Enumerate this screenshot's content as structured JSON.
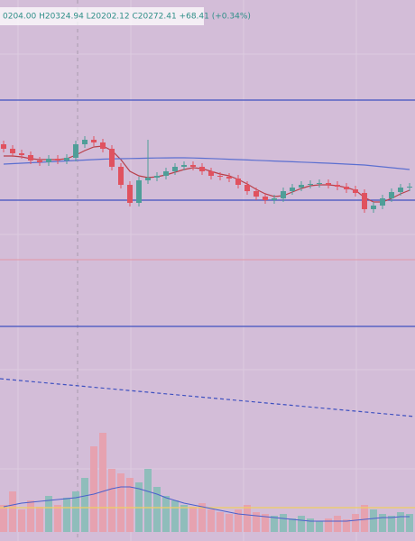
{
  "chart_data": {
    "type": "candlestick",
    "ohlc_label": "0204.00 H20324.94 L20202.12 C20272.41 +68.41 (+0.34%)",
    "ylim": [
      16370,
      22370
    ],
    "up_color": "#4f9e98",
    "down_color": "#e0525f",
    "open": [
      20770,
      20720,
      20670,
      20650,
      20590,
      20570,
      20610,
      20590,
      20620,
      20770,
      20820,
      20790,
      20720,
      20520,
      20320,
      20120,
      20370,
      20400,
      20420,
      20470,
      20520,
      20540,
      20520,
      20470,
      20420,
      20410,
      20390,
      20320,
      20250,
      20190,
      20150,
      20170,
      20250,
      20290,
      20320,
      20330,
      20340,
      20320,
      20300,
      20270,
      20230,
      20050,
      20090,
      20170,
      20240,
      20290
    ],
    "high": [
      20810,
      20760,
      20710,
      20690,
      20630,
      20650,
      20650,
      20660,
      20810,
      20860,
      20860,
      20830,
      20760,
      20560,
      20360,
      20410,
      20820,
      20460,
      20510,
      20560,
      20580,
      20580,
      20560,
      20510,
      20460,
      20450,
      20430,
      20360,
      20290,
      20230,
      20210,
      20290,
      20330,
      20360,
      20370,
      20380,
      20380,
      20360,
      20340,
      20310,
      20270,
      20130,
      20210,
      20280,
      20330,
      20340
    ],
    "low": [
      20680,
      20630,
      20610,
      20550,
      20530,
      20530,
      20550,
      20550,
      20580,
      20730,
      20750,
      20680,
      20480,
      20280,
      20080,
      20080,
      20330,
      20360,
      20380,
      20430,
      20480,
      20480,
      20430,
      20380,
      20370,
      20350,
      20280,
      20210,
      20150,
      20110,
      20110,
      20130,
      20210,
      20250,
      20280,
      20290,
      20280,
      20260,
      20230,
      20190,
      20010,
      20010,
      20050,
      20130,
      20200,
      20250
    ],
    "close": [
      20720,
      20670,
      20650,
      20590,
      20570,
      20610,
      20590,
      20620,
      20770,
      20820,
      20790,
      20720,
      20520,
      20320,
      20120,
      20370,
      20400,
      20420,
      20470,
      20520,
      20540,
      20520,
      20470,
      20420,
      20410,
      20390,
      20320,
      20250,
      20190,
      20150,
      20170,
      20250,
      20290,
      20320,
      20330,
      20340,
      20320,
      20300,
      20270,
      20230,
      20050,
      20090,
      20170,
      20240,
      20290,
      20300
    ],
    "ma_lines": [
      {
        "color": "#b8404a",
        "values": [
          20640,
          20640,
          20630,
          20610,
          20600,
          20600,
          20600,
          20610,
          20650,
          20700,
          20740,
          20750,
          20700,
          20600,
          20470,
          20420,
          20400,
          20410,
          20430,
          20460,
          20490,
          20510,
          20500,
          20470,
          20440,
          20420,
          20380,
          20330,
          20270,
          20220,
          20190,
          20200,
          20240,
          20280,
          20310,
          20320,
          20320,
          20310,
          20290,
          20260,
          20180,
          20130,
          20130,
          20170,
          20220,
          20260
        ]
      },
      {
        "color": "#5b6fd0",
        "values": [
          20550,
          20555,
          20560,
          20565,
          20570,
          20575,
          20580,
          20585,
          20590,
          20595,
          20600,
          20605,
          20608,
          20610,
          20612,
          20614,
          20616,
          20618,
          20619,
          20620,
          20620,
          20618,
          20615,
          20612,
          20608,
          20604,
          20600,
          20596,
          20592,
          20588,
          20584,
          20580,
          20576,
          20572,
          20568,
          20564,
          20560,
          20555,
          20550,
          20545,
          20540,
          20530,
          20520,
          20510,
          20500,
          20490
        ]
      }
    ],
    "levels": [
      {
        "value": 21260,
        "color": "#3f51c0"
      },
      {
        "value": 20150,
        "color": "#3f51c0"
      },
      {
        "value": 19490,
        "color": "#e0a0b0"
      },
      {
        "value": 18750,
        "color": "#3f51c0"
      }
    ],
    "trend_line": {
      "color": "#3f51c0",
      "values": [
        18170,
        17750
      ]
    },
    "volume": {
      "ylim": [
        0,
        120
      ],
      "up_color": "#8fbdbb",
      "down_color": "#e6a2b0",
      "values": [
        30,
        45,
        25,
        35,
        28,
        40,
        30,
        38,
        45,
        60,
        95,
        110,
        70,
        65,
        60,
        55,
        70,
        50,
        40,
        35,
        30,
        28,
        32,
        25,
        22,
        20,
        25,
        30,
        22,
        20,
        18,
        20,
        15,
        18,
        15,
        12,
        15,
        18,
        14,
        20,
        30,
        25,
        20,
        18,
        22,
        20
      ],
      "ma_color": "#4a5fcc",
      "ma": [
        28,
        30,
        32,
        33,
        34,
        35,
        36,
        37,
        38,
        40,
        42,
        45,
        48,
        50,
        50,
        48,
        45,
        42,
        38,
        35,
        32,
        30,
        28,
        26,
        24,
        22,
        20,
        19,
        18,
        17,
        16,
        15,
        14,
        13,
        12,
        12,
        12,
        12,
        12,
        13,
        14,
        15,
        16,
        16,
        17,
        17
      ],
      "level_color": "#f0d060",
      "level": 27
    }
  }
}
